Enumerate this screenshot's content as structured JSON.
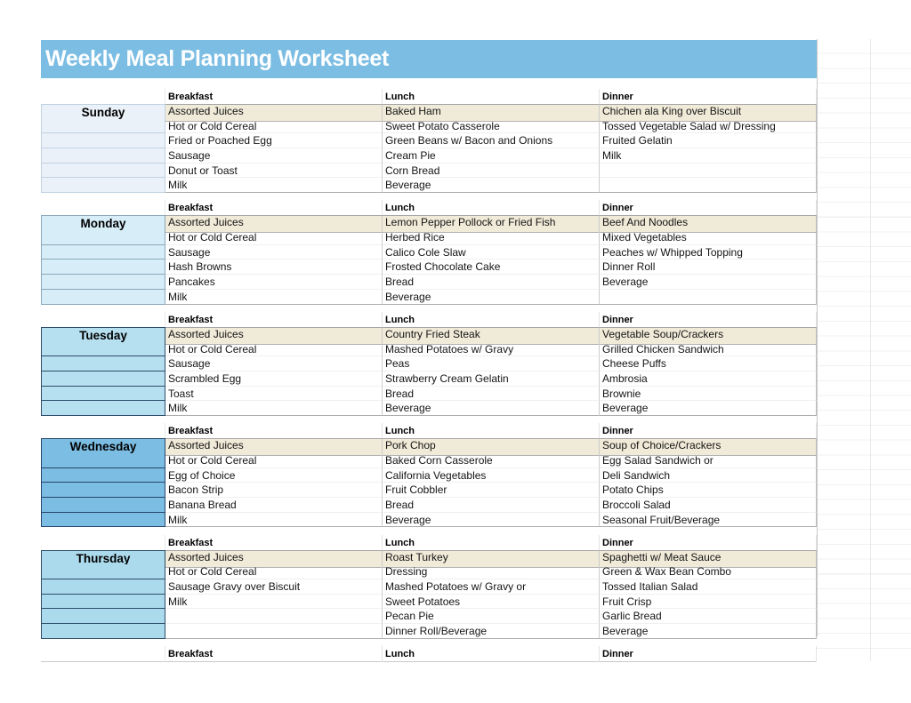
{
  "title": "Weekly Meal Planning Worksheet",
  "columns": [
    "Breakfast",
    "Lunch",
    "Dinner"
  ],
  "colors": {
    "title_bar": "#7CBDE3",
    "highlight_row": "#F0EAD8"
  },
  "days": [
    {
      "name": "Sunday",
      "fill": "#EAF1F9",
      "line": "#C0D2E2",
      "breakfast": [
        "Assorted Juices",
        "Hot or Cold Cereal",
        "Fried or Poached Egg",
        "Sausage",
        "Donut or Toast",
        "Milk"
      ],
      "lunch": [
        "Baked Ham",
        "Sweet Potato Casserole",
        "Green Beans w/ Bacon and Onions",
        "Cream Pie",
        "Corn Bread",
        "Beverage"
      ],
      "dinner": [
        "Chichen ala King over Biscuit",
        "Tossed Vegetable Salad w/ Dressing",
        "Fruited Gelatin",
        "Milk",
        "",
        ""
      ]
    },
    {
      "name": "Monday",
      "fill": "#D7EDF7",
      "line": "#8AA9BA",
      "breakfast": [
        "Assorted Juices",
        "Hot or Cold Cereal",
        "Sausage",
        "Hash Browns",
        "Pancakes",
        "Milk"
      ],
      "lunch": [
        "Lemon Pepper Pollock or Fried Fish",
        "Herbed Rice",
        "Calico Cole Slaw",
        "Frosted Chocolate Cake",
        "Bread",
        "Beverage"
      ],
      "dinner": [
        "Beef And Noodles",
        "Mixed Vegetables",
        "Peaches w/ Whipped Topping",
        "Dinner Roll",
        "Beverage",
        ""
      ]
    },
    {
      "name": "Tuesday",
      "fill": "#B6DFEF",
      "line": "#2E4D6B",
      "breakfast": [
        "Assorted Juices",
        "Hot or Cold Cereal",
        "Sausage",
        "Scrambled Egg",
        "Toast",
        "Milk"
      ],
      "lunch": [
        "Country Fried Steak",
        "Mashed Potatoes w/ Gravy",
        "Peas",
        "Strawberry Cream Gelatin",
        "Bread",
        "Beverage"
      ],
      "dinner": [
        "Vegetable Soup/Crackers",
        "Grilled Chicken Sandwich",
        "Cheese Puffs",
        "Ambrosia",
        "Brownie",
        "Beverage"
      ]
    },
    {
      "name": "Wednesday",
      "fill": "#7CBDE3",
      "line": "#27466B",
      "breakfast": [
        "Assorted Juices",
        "Hot or Cold Cereal",
        "Egg of Choice",
        "Bacon Strip",
        "Banana Bread",
        "Milk"
      ],
      "lunch": [
        "Pork Chop",
        "Baked Corn Casserole",
        "California Vegetables",
        "Fruit Cobbler",
        "Bread",
        "Beverage"
      ],
      "dinner": [
        "Soup of Choice/Crackers",
        "Egg Salad Sandwich or",
        "Deli Sandwich",
        "Potato Chips",
        "Broccoli Salad",
        "Seasonal Fruit/Beverage"
      ]
    },
    {
      "name": "Thursday",
      "fill": "#ABDAEC",
      "line": "#2E4D6B",
      "breakfast": [
        "Assorted Juices",
        "Hot or Cold Cereal",
        "Sausage Gravy over Biscuit",
        "Milk",
        "",
        ""
      ],
      "lunch": [
        "Roast Turkey",
        "Dressing",
        "Mashed Potatoes w/ Gravy or",
        "Sweet Potatoes",
        "Pecan Pie",
        "Dinner Roll/Beverage"
      ],
      "dinner": [
        "Spaghetti w/ Meat Sauce",
        "Green & Wax Bean Combo",
        "Tossed Italian Salad",
        "Fruit Crisp",
        "Garlic Bread",
        "Beverage"
      ]
    }
  ],
  "footer": {
    "columns": [
      "Breakfast",
      "Lunch",
      "Dinner"
    ]
  }
}
